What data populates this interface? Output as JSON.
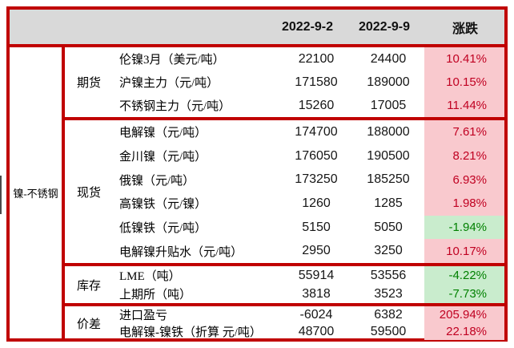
{
  "colors": {
    "border_red": "#c00000",
    "header_bg": "#d9d9d9",
    "up_bg": "#f9c9ce",
    "up_text": "#c00021",
    "down_bg": "#c9eccd",
    "down_text": "#008000"
  },
  "table": {
    "header": {
      "date_a": "2022-9-2",
      "date_b": "2022-9-9",
      "change_label": "涨跌"
    },
    "category_label": "镍-不锈钢",
    "sections": [
      {
        "group": "期货",
        "rows": [
          {
            "label": "伦镍3月（美元/吨）",
            "v1": "22100",
            "v2": "24400",
            "pct": "10.41%",
            "dir": "up"
          },
          {
            "label": "沪镍主力（元/吨）",
            "v1": "171580",
            "v2": "189000",
            "pct": "10.15%",
            "dir": "up"
          },
          {
            "label": "不锈钢主力（元/吨）",
            "v1": "15260",
            "v2": "17005",
            "pct": "11.44%",
            "dir": "up"
          }
        ]
      },
      {
        "group": "现货",
        "rows": [
          {
            "label": "电解镍（元/吨）",
            "v1": "174700",
            "v2": "188000",
            "pct": "7.61%",
            "dir": "up"
          },
          {
            "label": "金川镍（元/吨）",
            "v1": "176050",
            "v2": "190500",
            "pct": "8.21%",
            "dir": "up"
          },
          {
            "label": "俄镍（元/吨）",
            "v1": "173250",
            "v2": "185250",
            "pct": "6.93%",
            "dir": "up"
          },
          {
            "label": "高镍铁（元/镍）",
            "v1": "1260",
            "v2": "1285",
            "pct": "1.98%",
            "dir": "up"
          },
          {
            "label": "低镍铁（元/吨）",
            "v1": "5150",
            "v2": "5050",
            "pct": "-1.94%",
            "dir": "down"
          },
          {
            "label": "电解镍升贴水（元/吨）",
            "v1": "2950",
            "v2": "3250",
            "pct": "10.17%",
            "dir": "up"
          }
        ]
      },
      {
        "group": "库存",
        "rows": [
          {
            "label": "LME（吨）",
            "v1": "55914",
            "v2": "53556",
            "pct": "-4.22%",
            "dir": "down"
          },
          {
            "label": "上期所（吨）",
            "v1": "3818",
            "v2": "3523",
            "pct": "-7.73%",
            "dir": "down"
          }
        ]
      },
      {
        "group": "价差",
        "rows": [
          {
            "label": "进口盈亏",
            "v1": "-6024",
            "v2": "6382",
            "pct": "205.94%",
            "dir": "up"
          },
          {
            "label": "电解镍-镍铁（折算 元/吨）",
            "v1": "48700",
            "v2": "59500",
            "pct": "22.18%",
            "dir": "up"
          }
        ]
      }
    ]
  },
  "chart_data": {
    "type": "table",
    "columns": [
      "2022-9-2",
      "2022-9-9",
      "涨跌"
    ],
    "row_group": "镍-不锈钢",
    "groups": [
      {
        "name": "期货",
        "rows": [
          {
            "item": "伦镍3月（美元/吨）",
            "prev": 22100,
            "curr": 24400,
            "change_pct": 10.41
          },
          {
            "item": "沪镍主力（元/吨）",
            "prev": 171580,
            "curr": 189000,
            "change_pct": 10.15
          },
          {
            "item": "不锈钢主力（元/吨）",
            "prev": 15260,
            "curr": 17005,
            "change_pct": 11.44
          }
        ]
      },
      {
        "name": "现货",
        "rows": [
          {
            "item": "电解镍（元/吨）",
            "prev": 174700,
            "curr": 188000,
            "change_pct": 7.61
          },
          {
            "item": "金川镍（元/吨）",
            "prev": 176050,
            "curr": 190500,
            "change_pct": 8.21
          },
          {
            "item": "俄镍（元/吨）",
            "prev": 173250,
            "curr": 185250,
            "change_pct": 6.93
          },
          {
            "item": "高镍铁（元/镍）",
            "prev": 1260,
            "curr": 1285,
            "change_pct": 1.98
          },
          {
            "item": "低镍铁（元/吨）",
            "prev": 5150,
            "curr": 5050,
            "change_pct": -1.94
          },
          {
            "item": "电解镍升贴水（元/吨）",
            "prev": 2950,
            "curr": 3250,
            "change_pct": 10.17
          }
        ]
      },
      {
        "name": "库存",
        "rows": [
          {
            "item": "LME（吨）",
            "prev": 55914,
            "curr": 53556,
            "change_pct": -4.22
          },
          {
            "item": "上期所（吨）",
            "prev": 3818,
            "curr": 3523,
            "change_pct": -7.73
          }
        ]
      },
      {
        "name": "价差",
        "rows": [
          {
            "item": "进口盈亏",
            "prev": -6024,
            "curr": 6382,
            "change_pct": 205.94
          },
          {
            "item": "电解镍-镍铁（折算 元/吨）",
            "prev": 48700,
            "curr": 59500,
            "change_pct": 22.18
          }
        ]
      }
    ],
    "legend": {
      "up_style": "pink background, red text",
      "down_style": "green background, green text"
    }
  }
}
